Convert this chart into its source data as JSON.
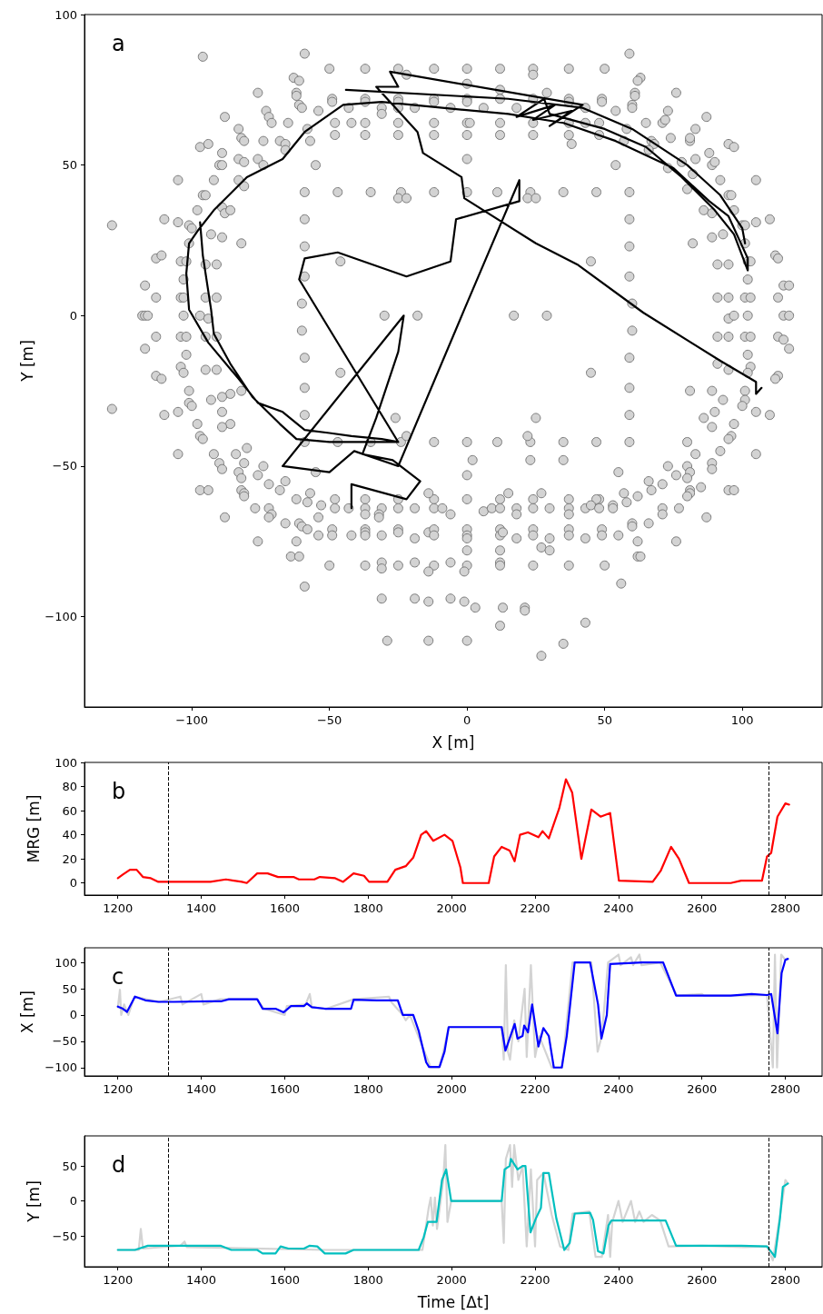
{
  "chart_data": [
    {
      "type": "scatter",
      "xlabel": "X [m]",
      "ylabel": "Y [m]",
      "annotations": [
        "a"
      ],
      "xlim": [
        -139,
        129
      ],
      "ylim": [
        -130,
        100
      ],
      "xticks": [
        -100,
        -50,
        0,
        50,
        100
      ],
      "yticks": [
        -100,
        -50,
        0,
        50,
        100
      ],
      "grid": false,
      "series": [
        {
          "color": "#d3d3d3",
          "marker": "circle",
          "x": [
            -96,
            -59,
            -50,
            -37,
            -25,
            -12,
            0,
            12,
            24,
            24,
            37,
            50,
            59,
            -22,
            -63,
            -61,
            63,
            62,
            -76,
            -62,
            -62,
            61,
            61,
            76,
            29,
            -49,
            -49,
            -37,
            -37,
            -25,
            -25,
            -12,
            -12,
            0,
            0,
            0,
            12,
            12,
            24,
            37,
            37,
            49,
            49,
            -61,
            -60,
            60,
            60,
            -73,
            -54,
            -43,
            -31,
            -31,
            -25,
            -19,
            -6,
            6,
            18,
            43,
            54,
            73,
            -88,
            -72,
            -71,
            -65,
            -48,
            -42,
            -37,
            -25,
            -12,
            0,
            1,
            12,
            24,
            37,
            43,
            48,
            65,
            71,
            72,
            87,
            -83,
            -58,
            58,
            83,
            -82,
            -81,
            -74,
            -68,
            -66,
            -57,
            -48,
            -37,
            -25,
            -12,
            0,
            12,
            24,
            37,
            38,
            48,
            57,
            67,
            68,
            74,
            81,
            81,
            -97,
            -94,
            95,
            97,
            -89,
            -66,
            66,
            88,
            -83,
            -81,
            -76,
            -90,
            -89,
            -74,
            -55,
            0,
            54,
            83,
            78,
            73,
            89,
            90,
            -105,
            -92,
            -83,
            -81,
            82,
            92,
            105,
            80,
            -96,
            -95,
            -59,
            -47,
            -35,
            -24,
            -25,
            -22,
            -12,
            0,
            11,
            23,
            22,
            25,
            35,
            47,
            59,
            95,
            96,
            -110,
            -105,
            -98,
            -89,
            -88,
            -86,
            86,
            89,
            97,
            110,
            105,
            59,
            -59,
            -101,
            -100,
            100,
            101,
            -129,
            -93,
            -89,
            -82,
            82,
            89,
            93,
            101,
            -101,
            -59,
            59,
            -113,
            -111,
            -104,
            -102,
            -95,
            -91,
            -46,
            45,
            91,
            95,
            102,
            103,
            112,
            113,
            -59,
            59,
            -103,
            102,
            -117,
            115,
            117,
            -113,
            -104,
            -103,
            -95,
            -91,
            91,
            95,
            101,
            103,
            113,
            -60,
            60,
            -118,
            -117,
            -116,
            -103,
            -97,
            -94,
            -30,
            -18,
            17,
            29,
            95,
            97,
            102,
            115,
            117,
            -60,
            60,
            -113,
            -104,
            -102,
            -95,
            -91,
            91,
            95,
            101,
            103,
            113,
            115,
            117,
            -117,
            -102,
            102,
            -59,
            59,
            -104,
            -103,
            -95,
            -91,
            45,
            -46,
            91,
            95,
            103,
            102,
            113,
            112,
            -113,
            -111,
            -59,
            59,
            -101,
            -82,
            -86,
            -89,
            -93,
            -101,
            -100,
            101,
            89,
            81,
            93,
            101,
            100,
            105,
            110,
            90,
            86,
            -129,
            -110,
            -105,
            -89,
            -98,
            -86,
            -89,
            -59,
            59,
            -26,
            25,
            97,
            89,
            -97,
            -96,
            96,
            95,
            -59,
            -47,
            -35,
            -24,
            -22,
            -12,
            0,
            11,
            23,
            22,
            35,
            47,
            59,
            80,
            -80,
            -105,
            -92,
            -84,
            83,
            92,
            105,
            2,
            23,
            35,
            -90,
            -89,
            -81,
            -74,
            -83,
            -82,
            -76,
            55,
            0,
            73,
            80,
            81,
            80,
            89,
            89,
            76,
            -55,
            -72,
            -66,
            -97,
            -94,
            -82,
            -81,
            -81,
            -68,
            -62,
            -57,
            -48,
            -37,
            -25,
            -12,
            0,
            12,
            24,
            37,
            48,
            47,
            -14,
            15,
            27,
            57,
            58,
            62,
            67,
            66,
            71,
            85,
            81,
            81,
            80,
            95,
            97,
            -77,
            -72,
            -71,
            -72,
            -58,
            -53,
            -48,
            -43,
            -37,
            -37,
            -31,
            -32,
            -32,
            -25,
            -19,
            -12,
            -9,
            -6,
            6,
            9,
            12,
            18,
            18,
            24,
            30,
            37,
            37,
            43,
            45,
            48,
            53,
            53,
            71,
            71,
            77,
            -88,
            -54,
            87,
            -66,
            -61,
            -60,
            -58,
            -54,
            -49,
            -49,
            -42,
            -37,
            -37,
            -37,
            -31,
            -25,
            -25,
            -19,
            -14,
            -12,
            -12,
            0,
            0,
            0,
            12,
            12,
            13,
            18,
            24,
            24,
            30,
            37,
            37,
            43,
            49,
            49,
            55,
            60,
            60,
            66,
            62,
            -76,
            -62,
            76,
            -64,
            -61,
            0,
            12,
            27,
            30,
            62,
            63,
            -50,
            -37,
            -31,
            -31,
            -25,
            -19,
            -12,
            -14,
            -6,
            0,
            -1,
            12,
            12,
            24,
            37,
            50,
            -59,
            56,
            -31,
            -19,
            -14,
            -6,
            -1,
            3,
            13,
            21,
            21,
            43,
            12,
            -29,
            -14,
            0,
            35,
            27
          ],
          "values": [
            86,
            87,
            82,
            82,
            82,
            82,
            82,
            82,
            82,
            80,
            82,
            82,
            87,
            80,
            79,
            78,
            79,
            78,
            74,
            74,
            73,
            74,
            73,
            74,
            74,
            72,
            71,
            72,
            71,
            72,
            71,
            72,
            71,
            77,
            72,
            71,
            75,
            72,
            72,
            72,
            71,
            72,
            71,
            70,
            69,
            70,
            69,
            68,
            68,
            69,
            69,
            67,
            69,
            69,
            69,
            69,
            69,
            69,
            68,
            68,
            66,
            66,
            64,
            64,
            64,
            64,
            64,
            64,
            64,
            64,
            64,
            64,
            64,
            64,
            64,
            64,
            64,
            64,
            65,
            66,
            62,
            62,
            62,
            62,
            59,
            58,
            58,
            58,
            57,
            58,
            60,
            60,
            60,
            60,
            60,
            60,
            60,
            60,
            57,
            60,
            58,
            58,
            57,
            59,
            58,
            59,
            56,
            57,
            57,
            56,
            54,
            55,
            55,
            54,
            52,
            51,
            52,
            50,
            50,
            50,
            50,
            52,
            50,
            52,
            51,
            49,
            50,
            51,
            45,
            45,
            45,
            43,
            47,
            45,
            45,
            42,
            40,
            40,
            41,
            41,
            41,
            41,
            39,
            39,
            41,
            41,
            41,
            41,
            39,
            39,
            41,
            41,
            41,
            40,
            40,
            32,
            31,
            35,
            36,
            34,
            35,
            35,
            34,
            35,
            32,
            31,
            32,
            32,
            30,
            29,
            30,
            30,
            30,
            27,
            26,
            24,
            24,
            26,
            27,
            24,
            24,
            23,
            23,
            19,
            20,
            18,
            18,
            17,
            17,
            18,
            18,
            17,
            17,
            18,
            18,
            20,
            19,
            13,
            13,
            12,
            12,
            10,
            10,
            10,
            6,
            6,
            6,
            6,
            6,
            6,
            6,
            6,
            6,
            6,
            4,
            4,
            0,
            0,
            0,
            0,
            0,
            -1,
            0,
            0,
            0,
            0,
            -1,
            0,
            0,
            0,
            0,
            -5,
            -5,
            -7,
            -7,
            -7,
            -7,
            -7,
            -7,
            -7,
            -7,
            -7,
            -7,
            -8,
            -11,
            -11,
            -13,
            -13,
            -14,
            -14,
            -17,
            -19,
            -18,
            -18,
            -19,
            -19,
            -16,
            -18,
            -17,
            -19,
            -20,
            -21,
            -20,
            -21,
            -24,
            -24,
            -25,
            -25,
            -26,
            -27,
            -28,
            -29,
            -30,
            -25,
            -25,
            -25,
            -28,
            -28,
            -30,
            -32,
            -33,
            -32,
            -34,
            -31,
            -33,
            -32,
            -32,
            -36,
            -36,
            -37,
            -33,
            -33,
            -34,
            -34,
            -36,
            -37,
            -40,
            -41,
            -40,
            -41,
            -42,
            -42,
            -42,
            -42,
            -40,
            -42,
            -42,
            -42,
            -42,
            -40,
            -42,
            -42,
            -42,
            -42,
            -44,
            -46,
            -46,
            -46,
            -46,
            -45,
            -46,
            -48,
            -48,
            -48,
            -49,
            -51,
            -49,
            -50,
            -52,
            -54,
            -53,
            -52,
            -53,
            -50,
            -50,
            -52,
            -54,
            -49,
            -51,
            -53,
            -52,
            -56,
            -55,
            -58,
            -58,
            -58,
            -59,
            -60,
            -58,
            -61,
            -59,
            -61,
            -61,
            -61,
            -61,
            -61,
            -61,
            -61,
            -61,
            -61,
            -61,
            -59,
            -59,
            -59,
            -59,
            -62,
            -60,
            -58,
            -55,
            -56,
            -57,
            -58,
            -59,
            -60,
            -58,
            -58,
            -64,
            -64,
            -66,
            -67,
            -62,
            -63,
            -64,
            -64,
            -64,
            -66,
            -64,
            -66,
            -67,
            -64,
            -64,
            -64,
            -64,
            -66,
            -65,
            -64,
            -64,
            -64,
            -66,
            -64,
            -64,
            -64,
            -66,
            -64,
            -63,
            -64,
            -63,
            -64,
            -64,
            -66,
            -64,
            -67,
            -67,
            -67,
            -69,
            -69,
            -70,
            -71,
            -73,
            -71,
            -73,
            -73,
            -71,
            -72,
            -73,
            -73,
            -71,
            -72,
            -74,
            -72,
            -71,
            -73,
            -71,
            -73,
            -74,
            -71,
            -73,
            -72,
            -74,
            -71,
            -73,
            -74,
            -71,
            -73,
            -74,
            -71,
            -73,
            -73,
            -69,
            -70,
            -69,
            -75,
            -75,
            -75,
            -75,
            -80,
            -80,
            -78,
            -78,
            -77,
            -78,
            -80,
            -80,
            -83,
            -83,
            -82,
            -84,
            -83,
            -82,
            -83,
            -85,
            -82,
            -83,
            -85,
            -82,
            -83,
            -83,
            -83,
            -83,
            -90,
            -89,
            -94,
            -94,
            -95,
            -94,
            -95,
            -97,
            -97,
            -97,
            -98,
            -102,
            -103,
            -108,
            -108,
            -108,
            -109,
            -113
          ]
        },
        {
          "type": "line",
          "color": "#000000",
          "marker": "none",
          "x": [
            -42,
            -42,
            -22,
            -17,
            -27,
            -38,
            -33,
            -25,
            -23,
            -67,
            -50,
            -41,
            -25,
            -1,
            19,
            19,
            -4,
            -6,
            -22,
            -47,
            -59,
            -61,
            -25,
            -31,
            -42,
            -50,
            -59,
            -67,
            -76,
            -83,
            -94,
            -101,
            -102,
            -101,
            -98,
            -92,
            -80,
            -67,
            -59,
            -45,
            -31,
            -9,
            15,
            35,
            54,
            75,
            88,
            95,
            102,
            102,
            97,
            90,
            78,
            65,
            50,
            30,
            28,
            18,
            32,
            24,
            38,
            30,
            42,
            -28,
            -25,
            -33,
            -18,
            -16,
            -2,
            -1,
            25,
            40,
            64,
            92,
            105,
            105,
            107,
            null,
            -44,
            15,
            42,
            60,
            80,
            92,
            100,
            101,
            null,
            -97,
            -96,
            -93,
            -92,
            -86,
            -78,
            -68,
            -62,
            -50,
            -40,
            -25
          ],
          "values": [
            -64,
            -56,
            -61,
            -55,
            -48,
            -46,
            -34,
            -12,
            0,
            -50,
            -52,
            -45,
            -50,
            2,
            45,
            38,
            32,
            18,
            13,
            21,
            19,
            12,
            -42,
            -41,
            -40,
            -39,
            -38,
            -32,
            -29,
            -21,
            -9,
            2,
            14,
            24,
            28,
            35,
            46,
            52,
            61,
            70,
            71,
            69,
            67,
            64,
            58,
            49,
            38,
            33,
            19,
            15,
            27,
            35,
            46,
            56,
            62,
            67,
            72,
            66,
            70,
            65,
            68,
            63,
            70,
            81,
            76,
            76,
            61,
            54,
            46,
            39,
            24,
            17,
            1,
            -15,
            -22,
            -26,
            -24,
            null,
            75,
            72,
            69,
            62,
            50,
            40,
            29,
            24,
            null,
            31,
            20,
            2,
            -6,
            -16,
            -27,
            -36,
            -41,
            -42,
            -42,
            -42
          ]
        }
      ]
    },
    {
      "type": "line",
      "ylabel": "MRG [m]",
      "annotations": [
        "b"
      ],
      "xlim": [
        1120,
        2888
      ],
      "ylim": [
        -10,
        100
      ],
      "xticks": [
        1200,
        1400,
        1600,
        1800,
        2000,
        2200,
        2400,
        2600,
        2800
      ],
      "yticks": [
        0,
        20,
        40,
        60,
        80,
        100
      ],
      "grid": false,
      "ref_lines": [
        {
          "axis": "x",
          "value": 1320,
          "color": "#000000",
          "line_style": "dashed"
        },
        {
          "axis": "x",
          "value": 2760,
          "color": "#000000",
          "line_style": "dashed"
        }
      ],
      "series": [
        {
          "color": "#ff0000",
          "marker": "none",
          "x": [
            1200,
            1212,
            1229,
            1245,
            1260,
            1279,
            1297,
            1322,
            1422,
            1459,
            1497,
            1509,
            1534,
            1559,
            1584,
            1621,
            1634,
            1671,
            1684,
            1721,
            1740,
            1765,
            1790,
            1802,
            1846,
            1865,
            1890,
            1908,
            1927,
            1939,
            1956,
            1983,
            2002,
            2021,
            2027,
            2089,
            2102,
            2120,
            2139,
            2151,
            2164,
            2183,
            2208,
            2218,
            2233,
            2258,
            2274,
            2289,
            2311,
            2335,
            2357,
            2380,
            2401,
            2482,
            2501,
            2526,
            2545,
            2569,
            2669,
            2694,
            2744,
            2756,
            2766,
            2781,
            2800,
            2809
          ],
          "values": [
            4,
            7,
            11,
            11,
            5,
            4,
            1,
            1,
            1,
            3,
            1,
            0,
            8,
            8,
            5,
            5,
            3,
            3,
            5,
            4,
            1,
            8,
            6,
            1,
            1,
            11,
            14,
            21,
            40,
            43,
            35,
            40,
            35,
            13,
            0,
            0,
            22,
            30,
            27,
            18,
            40,
            42,
            38,
            43,
            37,
            62,
            86,
            75,
            20,
            61,
            55,
            58,
            2,
            1,
            10,
            30,
            20,
            0,
            0,
            2,
            2,
            22,
            25,
            55,
            66,
            65
          ]
        }
      ]
    },
    {
      "type": "line",
      "ylabel": "X [m]",
      "annotations": [
        "c"
      ],
      "xlim": [
        1120,
        2888
      ],
      "ylim": [
        -116,
        128
      ],
      "xticks": [
        1200,
        1400,
        1600,
        1800,
        2000,
        2200,
        2400,
        2600,
        2800
      ],
      "yticks": [
        -100,
        -50,
        0,
        50,
        100
      ],
      "grid": false,
      "ref_lines": [
        {
          "axis": "x",
          "value": 1320,
          "color": "#000000",
          "line_style": "dashed"
        },
        {
          "axis": "x",
          "value": 2760,
          "color": "#000000",
          "line_style": "dashed"
        }
      ],
      "series": [
        {
          "color": "#d3d3d3",
          "marker": "none",
          "x": [
            1200,
            1205,
            1208,
            1215,
            1225,
            1240,
            1300,
            1350,
            1355,
            1400,
            1405,
            1445,
            1534,
            1550,
            1600,
            1605,
            1650,
            1660,
            1665,
            1700,
            1765,
            1850,
            1855,
            1883,
            1890,
            1900,
            1930,
            1950,
            1970,
            1980,
            1993,
            2120,
            2125,
            2130,
            2135,
            2140,
            2150,
            2160,
            2175,
            2180,
            2190,
            2200,
            2210,
            2240,
            2265,
            2290,
            2335,
            2350,
            2360,
            2375,
            2400,
            2405,
            2430,
            2435,
            2450,
            2455,
            2500,
            2540,
            2600,
            2605,
            2700,
            2756,
            2770,
            2775,
            2780,
            2790,
            2800,
            2806
          ],
          "values": [
            15,
            48,
            0,
            20,
            0,
            35,
            25,
            35,
            20,
            40,
            20,
            30,
            30,
            12,
            0,
            17,
            20,
            40,
            15,
            12,
            30,
            35,
            25,
            0,
            -10,
            0,
            -60,
            -100,
            -100,
            -70,
            -23,
            -23,
            -85,
            95,
            -70,
            -85,
            -10,
            -50,
            50,
            -80,
            95,
            -80,
            -40,
            -100,
            -100,
            100,
            100,
            -70,
            -40,
            100,
            115,
            95,
            110,
            95,
            115,
            95,
            100,
            37,
            40,
            37,
            37,
            38,
            -100,
            115,
            -100,
            115,
            105,
            107
          ]
        },
        {
          "color": "#0000ff",
          "marker": "none",
          "x": [
            1200,
            1212,
            1222,
            1241,
            1266,
            1297,
            1335,
            1422,
            1447,
            1466,
            1534,
            1547,
            1578,
            1597,
            1615,
            1646,
            1653,
            1665,
            1696,
            1759,
            1765,
            1821,
            1871,
            1883,
            1908,
            1921,
            1939,
            1946,
            1971,
            1983,
            1993,
            2120,
            2129,
            2139,
            2151,
            2158,
            2170,
            2174,
            2183,
            2193,
            2208,
            2220,
            2233,
            2245,
            2264,
            2276,
            2295,
            2332,
            2351,
            2359,
            2372,
            2380,
            2457,
            2507,
            2538,
            2669,
            2719,
            2756,
            2766,
            2781,
            2791,
            2800,
            2806
          ],
          "values": [
            16,
            12,
            6,
            35,
            28,
            25,
            25,
            26,
            26,
            30,
            30,
            12,
            12,
            5,
            17,
            17,
            22,
            15,
            12,
            12,
            29,
            28,
            28,
            0,
            0,
            -30,
            -90,
            -99,
            -99,
            -70,
            -23,
            -23,
            -68,
            -45,
            -17,
            -45,
            -40,
            -20,
            -33,
            20,
            -60,
            -25,
            -40,
            -100,
            -100,
            -40,
            100,
            100,
            20,
            -45,
            0,
            97,
            100,
            100,
            37,
            37,
            40,
            38,
            40,
            -35,
            80,
            105,
            107
          ]
        }
      ]
    },
    {
      "type": "line",
      "xlabel": "Time [Δt]",
      "ylabel": "Y [m]",
      "annotations": [
        "d"
      ],
      "xlim": [
        1120,
        2888
      ],
      "ylim": [
        -94,
        93
      ],
      "xticks": [
        1200,
        1400,
        1600,
        1800,
        2000,
        2200,
        2400,
        2600,
        2800
      ],
      "yticks": [
        -50,
        0,
        50
      ],
      "grid": false,
      "ref_lines": [
        {
          "axis": "x",
          "value": 1320,
          "color": "#000000",
          "line_style": "dashed"
        },
        {
          "axis": "x",
          "value": 2760,
          "color": "#000000",
          "line_style": "dashed"
        }
      ],
      "series": [
        {
          "color": "#d3d3d3",
          "marker": "none",
          "x": [
            1200,
            1250,
            1255,
            1260,
            1350,
            1360,
            1365,
            1700,
            1930,
            1940,
            1945,
            1950,
            1955,
            1960,
            1965,
            1980,
            1985,
            1990,
            1999,
            2120,
            2125,
            2130,
            2140,
            2145,
            2150,
            2160,
            2170,
            2180,
            2190,
            2200,
            2205,
            2220,
            2240,
            2260,
            2280,
            2290,
            2330,
            2345,
            2360,
            2375,
            2380,
            2385,
            2400,
            2410,
            2430,
            2440,
            2450,
            2460,
            2480,
            2500,
            2520,
            2600,
            2700,
            2756,
            2770,
            2790,
            2800,
            2806
          ],
          "values": [
            -70,
            -70,
            -40,
            -68,
            -64,
            -58,
            -66,
            -70,
            -70,
            -30,
            -10,
            5,
            -35,
            5,
            -40,
            30,
            80,
            -30,
            0,
            0,
            -60,
            60,
            80,
            20,
            80,
            30,
            50,
            -65,
            45,
            -65,
            30,
            40,
            -20,
            -65,
            -70,
            -18,
            -15,
            -80,
            -80,
            -20,
            -80,
            -30,
            0,
            -30,
            0,
            -30,
            -15,
            -30,
            -20,
            -28,
            -65,
            -64,
            -66,
            -65,
            -85,
            -10,
            30,
            25
          ]
        },
        {
          "color": "#00bfbf",
          "marker": "none",
          "x": [
            1200,
            1241,
            1272,
            1447,
            1472,
            1534,
            1547,
            1578,
            1590,
            1609,
            1646,
            1659,
            1678,
            1696,
            1746,
            1765,
            1921,
            1933,
            1943,
            1964,
            1977,
            1987,
            1999,
            2120,
            2127,
            2139,
            2142,
            2158,
            2170,
            2177,
            2189,
            2202,
            2214,
            2220,
            2233,
            2251,
            2270,
            2283,
            2295,
            2332,
            2339,
            2351,
            2364,
            2376,
            2383,
            2513,
            2538,
            2694,
            2756,
            2769,
            2775,
            2787,
            2794,
            2806
          ],
          "values": [
            -70,
            -70,
            -64,
            -64,
            -70,
            -70,
            -75,
            -75,
            -65,
            -68,
            -68,
            -64,
            -65,
            -75,
            -75,
            -70,
            -70,
            -52,
            -30,
            -30,
            30,
            45,
            0,
            0,
            45,
            50,
            60,
            45,
            50,
            50,
            -45,
            -25,
            -10,
            40,
            40,
            -25,
            -70,
            -60,
            -18,
            -17,
            -27,
            -72,
            -75,
            -35,
            -28,
            -28,
            -64,
            -64,
            -65,
            -75,
            -80,
            -25,
            20,
            25
          ]
        }
      ]
    }
  ]
}
